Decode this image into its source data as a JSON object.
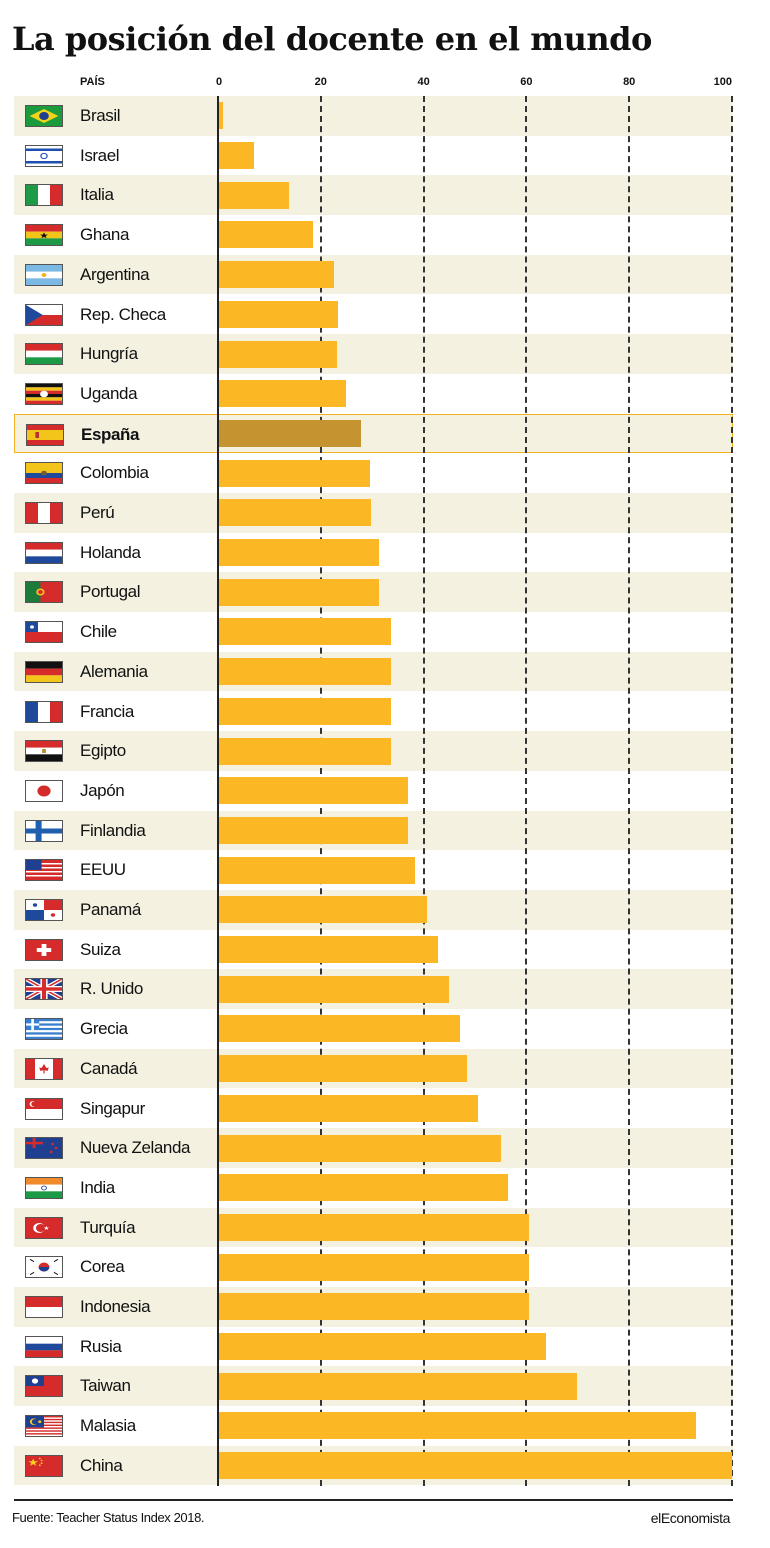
{
  "title": "La posición del docente en el mundo",
  "source": "Fuente: Teacher Status Index 2018.",
  "brand": "elEconomista",
  "colors": {
    "bar": "#fbb824",
    "bar_highlight": "#c59430",
    "row_alt": "#f4f1e1",
    "highlight_border": "#f2b21f"
  },
  "chart_data": {
    "type": "bar",
    "orientation": "horizontal",
    "category_header": "PAÍS",
    "xlim": [
      0,
      100
    ],
    "ticks": [
      "0",
      "20",
      "40",
      "60",
      "80",
      "100"
    ],
    "grid": true,
    "highlight": "España",
    "categories": [
      "Brasil",
      "Israel",
      "Italia",
      "Ghana",
      "Argentina",
      "Rep. Checa",
      "Hungría",
      "Uganda",
      "España",
      "Colombia",
      "Perú",
      "Holanda",
      "Portugal",
      "Chile",
      "Alemania",
      "Francia",
      "Egipto",
      "Japón",
      "Finlandia",
      "EEUU",
      "Panamá",
      "Suiza",
      "R. Unido",
      "Grecia",
      "Canadá",
      "Singapur",
      "Nueva Zelanda",
      "India",
      "Turquía",
      "Corea",
      "Indonesia",
      "Rusia",
      "Taiwan",
      "Malasia",
      "China"
    ],
    "values": [
      1.0,
      7.0,
      13.9,
      18.5,
      22.5,
      23.3,
      23.1,
      24.9,
      27.9,
      29.6,
      29.7,
      31.3,
      31.4,
      33.6,
      33.6,
      33.6,
      33.6,
      37.0,
      37.0,
      38.4,
      40.7,
      42.8,
      45.0,
      47.0,
      48.5,
      50.6,
      55.1,
      56.5,
      60.5,
      60.5,
      60.5,
      63.8,
      69.8,
      92.9,
      100.0
    ],
    "flags": [
      "brazil-flag-icon",
      "israel-flag-icon",
      "italy-flag-icon",
      "ghana-flag-icon",
      "argentina-flag-icon",
      "czech-flag-icon",
      "hungary-flag-icon",
      "uganda-flag-icon",
      "spain-flag-icon",
      "colombia-flag-icon",
      "peru-flag-icon",
      "netherlands-flag-icon",
      "portugal-flag-icon",
      "chile-flag-icon",
      "germany-flag-icon",
      "france-flag-icon",
      "egypt-flag-icon",
      "japan-flag-icon",
      "finland-flag-icon",
      "usa-flag-icon",
      "panama-flag-icon",
      "switzerland-flag-icon",
      "uk-flag-icon",
      "greece-flag-icon",
      "canada-flag-icon",
      "singapore-flag-icon",
      "new-zealand-flag-icon",
      "india-flag-icon",
      "turkey-flag-icon",
      "korea-flag-icon",
      "indonesia-flag-icon",
      "russia-flag-icon",
      "taiwan-flag-icon",
      "malaysia-flag-icon",
      "china-flag-icon"
    ]
  }
}
